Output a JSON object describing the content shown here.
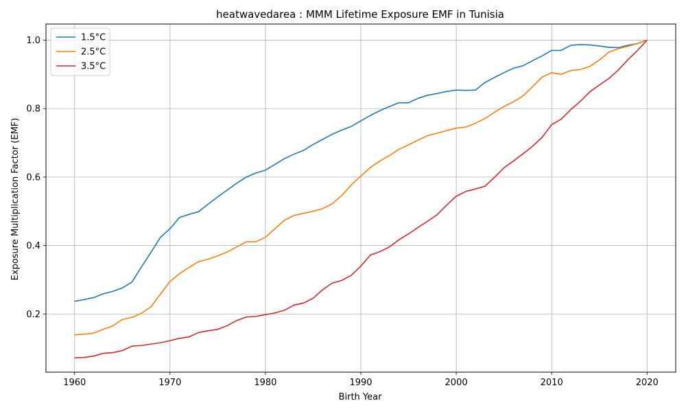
{
  "chart_data": {
    "type": "line",
    "title": "heatwavedarea : MMM Lifetime Exposure EMF in Tunisia",
    "xlabel": "Birth Year",
    "ylabel": "Exposure Multiplication Factor (EMF)",
    "xlim": [
      1957,
      2023
    ],
    "ylim": [
      0.03,
      1.047
    ],
    "xticks": [
      1960,
      1970,
      1980,
      1990,
      2000,
      2010,
      2020
    ],
    "yticks": [
      0.2,
      0.4,
      0.6,
      0.8,
      1.0
    ],
    "xtick_labels": [
      "1960",
      "1970",
      "1980",
      "1990",
      "2000",
      "2010",
      "2020"
    ],
    "ytick_labels": [
      "0.2",
      "0.4",
      "0.6",
      "0.8",
      "1.0"
    ],
    "grid": true,
    "legend_position": "top-left",
    "x": [
      1960,
      1961,
      1962,
      1963,
      1964,
      1965,
      1966,
      1967,
      1968,
      1969,
      1970,
      1971,
      1972,
      1973,
      1974,
      1975,
      1976,
      1977,
      1978,
      1979,
      1980,
      1981,
      1982,
      1983,
      1984,
      1985,
      1986,
      1987,
      1988,
      1989,
      1990,
      1991,
      1992,
      1993,
      1994,
      1995,
      1996,
      1997,
      1998,
      1999,
      2000,
      2001,
      2002,
      2003,
      2004,
      2005,
      2006,
      2007,
      2008,
      2009,
      2010,
      2011,
      2012,
      2013,
      2014,
      2015,
      2016,
      2017,
      2018,
      2019,
      2020
    ],
    "series": [
      {
        "name": "1.5°C",
        "color": "#1f77b4",
        "values": [
          0.237,
          0.242,
          0.248,
          0.259,
          0.266,
          0.276,
          0.293,
          0.337,
          0.38,
          0.424,
          0.449,
          0.482,
          0.491,
          0.499,
          0.521,
          0.542,
          0.562,
          0.582,
          0.6,
          0.612,
          0.62,
          0.637,
          0.654,
          0.667,
          0.678,
          0.695,
          0.71,
          0.725,
          0.737,
          0.748,
          0.764,
          0.78,
          0.794,
          0.806,
          0.817,
          0.817,
          0.83,
          0.839,
          0.844,
          0.85,
          0.854,
          0.853,
          0.854,
          0.876,
          0.891,
          0.905,
          0.918,
          0.925,
          0.94,
          0.954,
          0.97,
          0.97,
          0.985,
          0.987,
          0.986,
          0.983,
          0.979,
          0.978,
          0.985,
          0.99,
          1.0
        ]
      },
      {
        "name": "2.5°C",
        "color": "#ff7f0e",
        "values": [
          0.139,
          0.141,
          0.144,
          0.155,
          0.165,
          0.184,
          0.19,
          0.202,
          0.221,
          0.258,
          0.295,
          0.318,
          0.336,
          0.353,
          0.36,
          0.37,
          0.381,
          0.396,
          0.411,
          0.411,
          0.424,
          0.449,
          0.474,
          0.488,
          0.494,
          0.5,
          0.508,
          0.522,
          0.546,
          0.577,
          0.603,
          0.628,
          0.647,
          0.663,
          0.681,
          0.694,
          0.708,
          0.721,
          0.728,
          0.736,
          0.743,
          0.746,
          0.757,
          0.771,
          0.789,
          0.806,
          0.82,
          0.837,
          0.864,
          0.892,
          0.905,
          0.9,
          0.911,
          0.914,
          0.923,
          0.942,
          0.965,
          0.975,
          0.982,
          0.99,
          1.0
        ]
      },
      {
        "name": "3.5°C",
        "color": "#d62728",
        "values": [
          0.072,
          0.073,
          0.077,
          0.085,
          0.087,
          0.093,
          0.106,
          0.108,
          0.112,
          0.116,
          0.122,
          0.129,
          0.133,
          0.146,
          0.151,
          0.155,
          0.166,
          0.181,
          0.191,
          0.193,
          0.198,
          0.203,
          0.211,
          0.226,
          0.232,
          0.246,
          0.271,
          0.29,
          0.298,
          0.313,
          0.34,
          0.372,
          0.382,
          0.396,
          0.417,
          0.434,
          0.453,
          0.471,
          0.49,
          0.518,
          0.544,
          0.558,
          0.565,
          0.573,
          0.599,
          0.627,
          0.647,
          0.668,
          0.69,
          0.716,
          0.753,
          0.769,
          0.797,
          0.821,
          0.849,
          0.869,
          0.888,
          0.913,
          0.943,
          0.97,
          1.0
        ]
      }
    ]
  }
}
